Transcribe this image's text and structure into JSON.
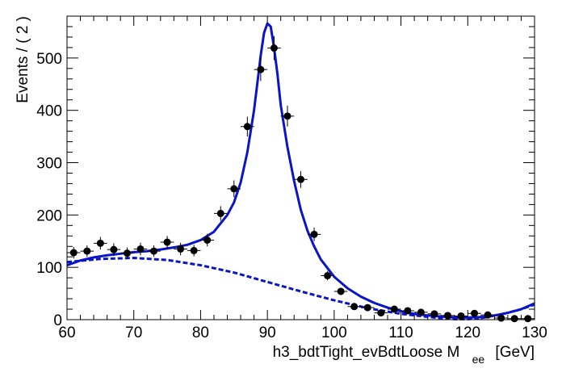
{
  "chart_data": {
    "type": "scatter",
    "title": "",
    "xlabel": "h3_bdtTight_evBdtLoose  M",
    "xlabel_sub": "ee",
    "xlabel_unit": "[GeV]",
    "ylabel": "Events / ( 2 )",
    "xlim": [
      60,
      130
    ],
    "ylim": [
      0,
      580
    ],
    "x_ticks": [
      60,
      70,
      80,
      90,
      100,
      110,
      120,
      130
    ],
    "y_ticks": [
      0,
      100,
      200,
      300,
      400,
      500
    ],
    "colors": {
      "fit": "#0a14c8",
      "points": "#000000"
    },
    "series": [
      {
        "role": "data points",
        "x": [
          61,
          63,
          65,
          67,
          69,
          71,
          73,
          75,
          77,
          79,
          81,
          83,
          85,
          87,
          89,
          91,
          93,
          95,
          97,
          99,
          101,
          103,
          105,
          107,
          109,
          111,
          113,
          115,
          117,
          119,
          121,
          123,
          125,
          127,
          129
        ],
        "y": [
          128,
          131,
          146,
          134,
          127,
          135,
          131,
          148,
          135,
          132,
          152,
          203,
          250,
          369,
          478,
          519,
          389,
          268,
          163,
          84,
          54,
          25,
          23,
          13,
          20,
          17,
          14,
          11,
          8,
          7,
          12,
          9,
          3,
          2,
          2
        ],
        "err": [
          11,
          11,
          12,
          12,
          11,
          12,
          11,
          12,
          12,
          11,
          12,
          14,
          16,
          19,
          22,
          23,
          20,
          16,
          13,
          9,
          7,
          5,
          5,
          4,
          4,
          4,
          4,
          3,
          3,
          3,
          3,
          3,
          2,
          2,
          2
        ]
      },
      {
        "role": "total fit (solid)",
        "x": [
          60,
          62,
          64,
          66,
          68,
          70,
          72,
          74,
          76,
          78,
          80,
          82,
          84,
          85,
          86,
          87,
          88,
          88.5,
          89,
          89.5,
          90,
          90.5,
          91,
          91.5,
          92,
          93,
          94,
          95,
          96,
          97,
          98,
          100,
          102,
          104,
          106,
          108,
          110,
          112,
          114,
          116,
          118,
          120,
          122,
          124,
          126,
          128,
          130
        ],
        "y": [
          104,
          113,
          119,
          123,
          126,
          129,
          131,
          134,
          138,
          143,
          152,
          168,
          200,
          224,
          262,
          320,
          400,
          452,
          505,
          548,
          566,
          560,
          520,
          470,
          410,
          330,
          265,
          210,
          170,
          140,
          115,
          82,
          60,
          44,
          32,
          23,
          16,
          11,
          8,
          6,
          4,
          4,
          5,
          8,
          13,
          20,
          31
        ]
      },
      {
        "role": "background fit (dashed)",
        "x": [
          60,
          65,
          70,
          75,
          80,
          85,
          90,
          95,
          100,
          105,
          110,
          115,
          118,
          120,
          122,
          125,
          128,
          130
        ],
        "y": [
          110,
          116,
          118,
          114,
          104,
          90,
          72,
          54,
          37,
          22,
          11,
          4,
          1,
          1,
          3,
          10,
          20,
          29
        ]
      }
    ]
  }
}
